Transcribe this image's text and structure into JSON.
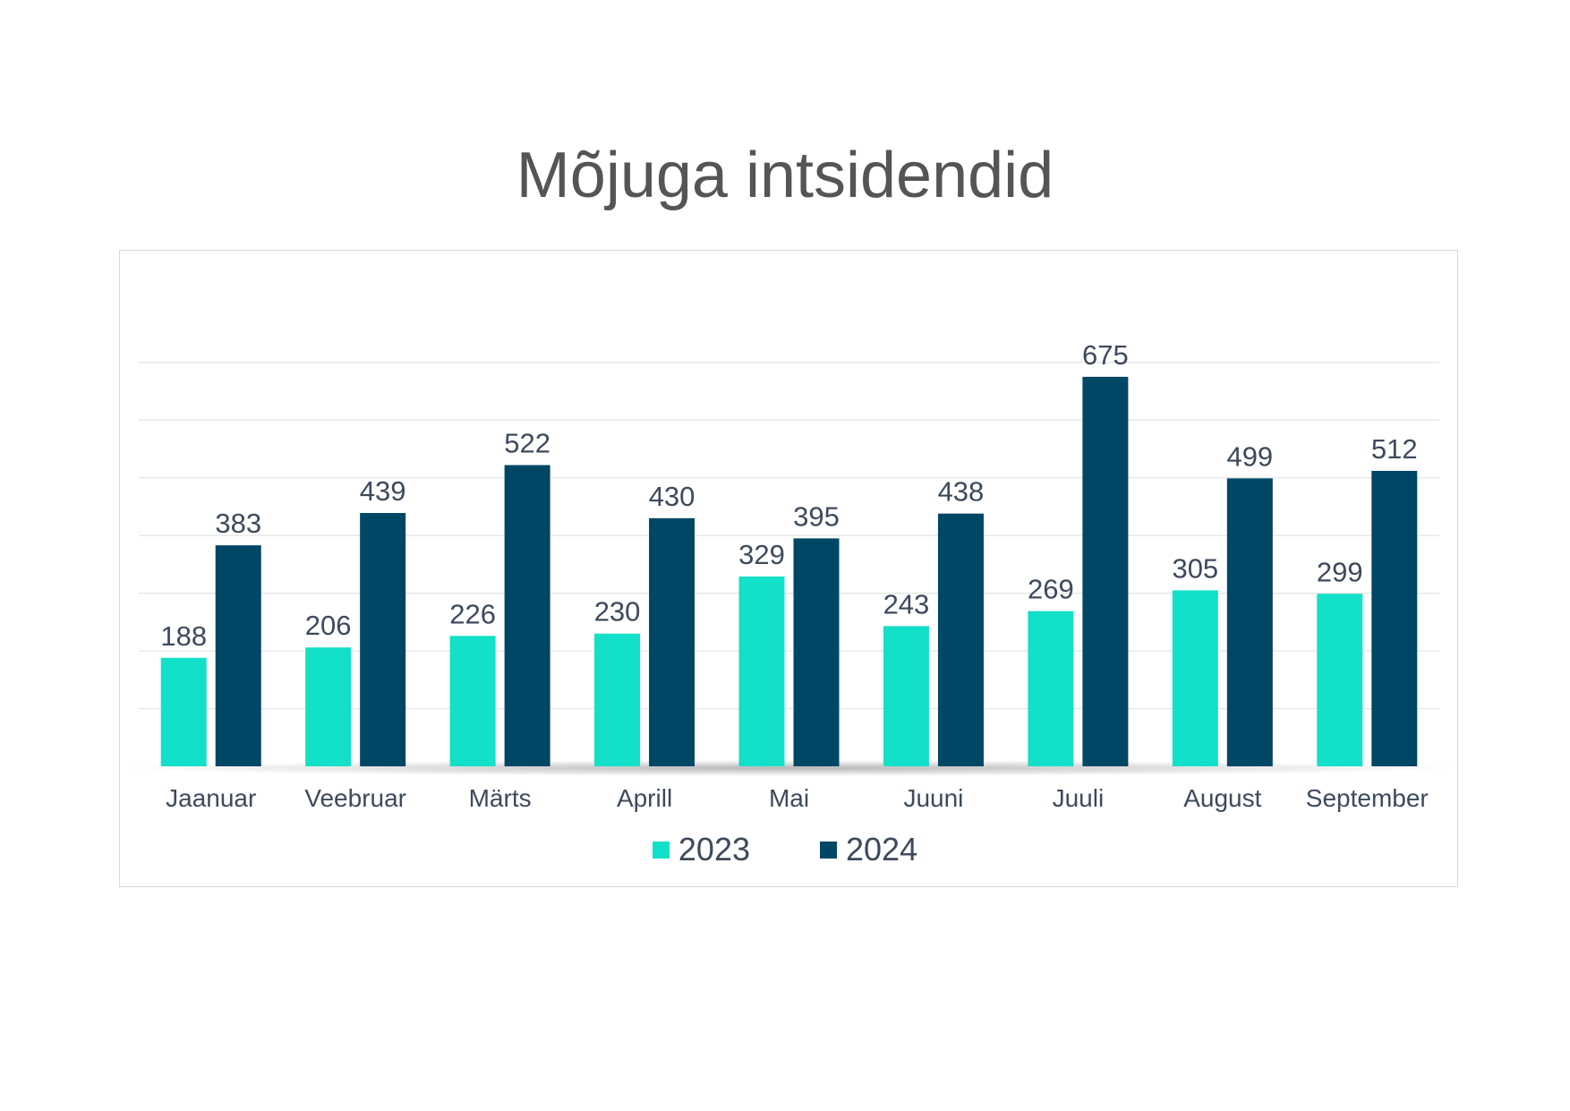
{
  "chart_data": {
    "type": "bar",
    "title": "Mõjuga intsidendid",
    "xlabel": "",
    "ylabel": "",
    "categories": [
      "Jaanuar",
      "Veebruar",
      "Märts",
      "Aprill",
      "Mai",
      "Juuni",
      "Juuli",
      "August",
      "September"
    ],
    "series": [
      {
        "name": "2023",
        "color": "#13e0c8",
        "values": [
          188,
          206,
          226,
          230,
          329,
          243,
          269,
          305,
          299
        ]
      },
      {
        "name": "2024",
        "color": "#004766",
        "values": [
          383,
          439,
          522,
          430,
          395,
          438,
          675,
          499,
          512
        ]
      }
    ],
    "ylim": [
      0,
      700
    ],
    "grid": true,
    "legend_position": "bottom",
    "data_labels": true
  }
}
